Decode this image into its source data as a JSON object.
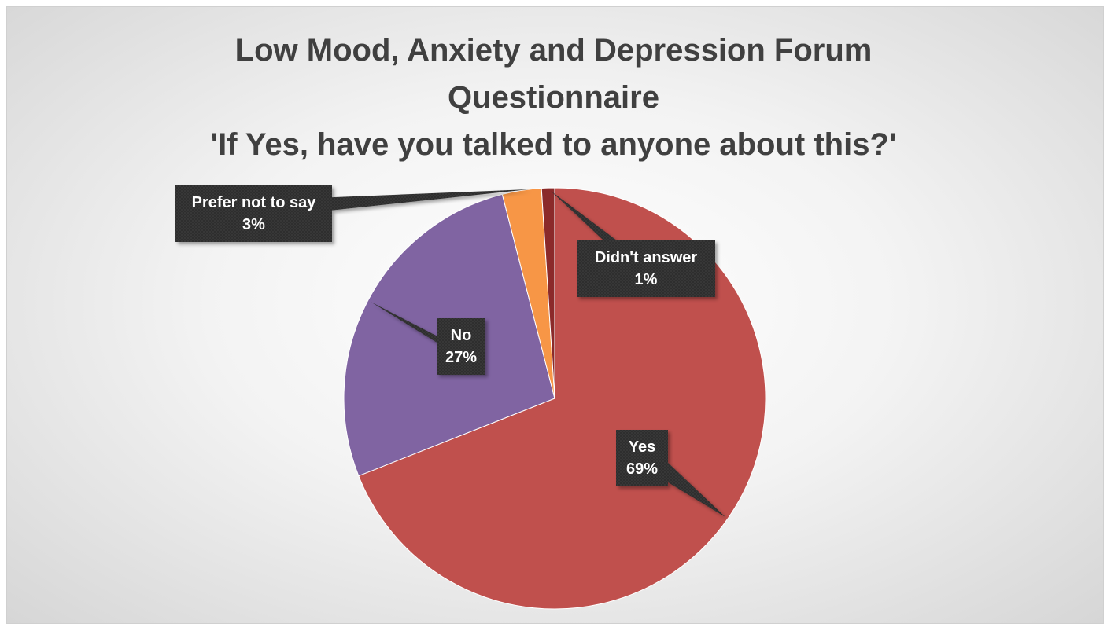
{
  "chart_data": {
    "type": "pie",
    "title_lines": [
      "Low Mood, Anxiety and Depression Forum",
      "Questionnaire",
      "'If Yes, have you talked to anyone about this?'"
    ],
    "slices": [
      {
        "name": "Yes",
        "value": 69,
        "label": "69%",
        "color": "#c0504d"
      },
      {
        "name": "No",
        "value": 27,
        "label": "27%",
        "color": "#8064a2"
      },
      {
        "name": "Prefer not to say",
        "value": 3,
        "label": "3%",
        "color": "#f79646"
      },
      {
        "name": "Didn't answer",
        "value": 1,
        "label": "1%",
        "color": "#8b2a2a"
      }
    ],
    "legend": "none"
  }
}
